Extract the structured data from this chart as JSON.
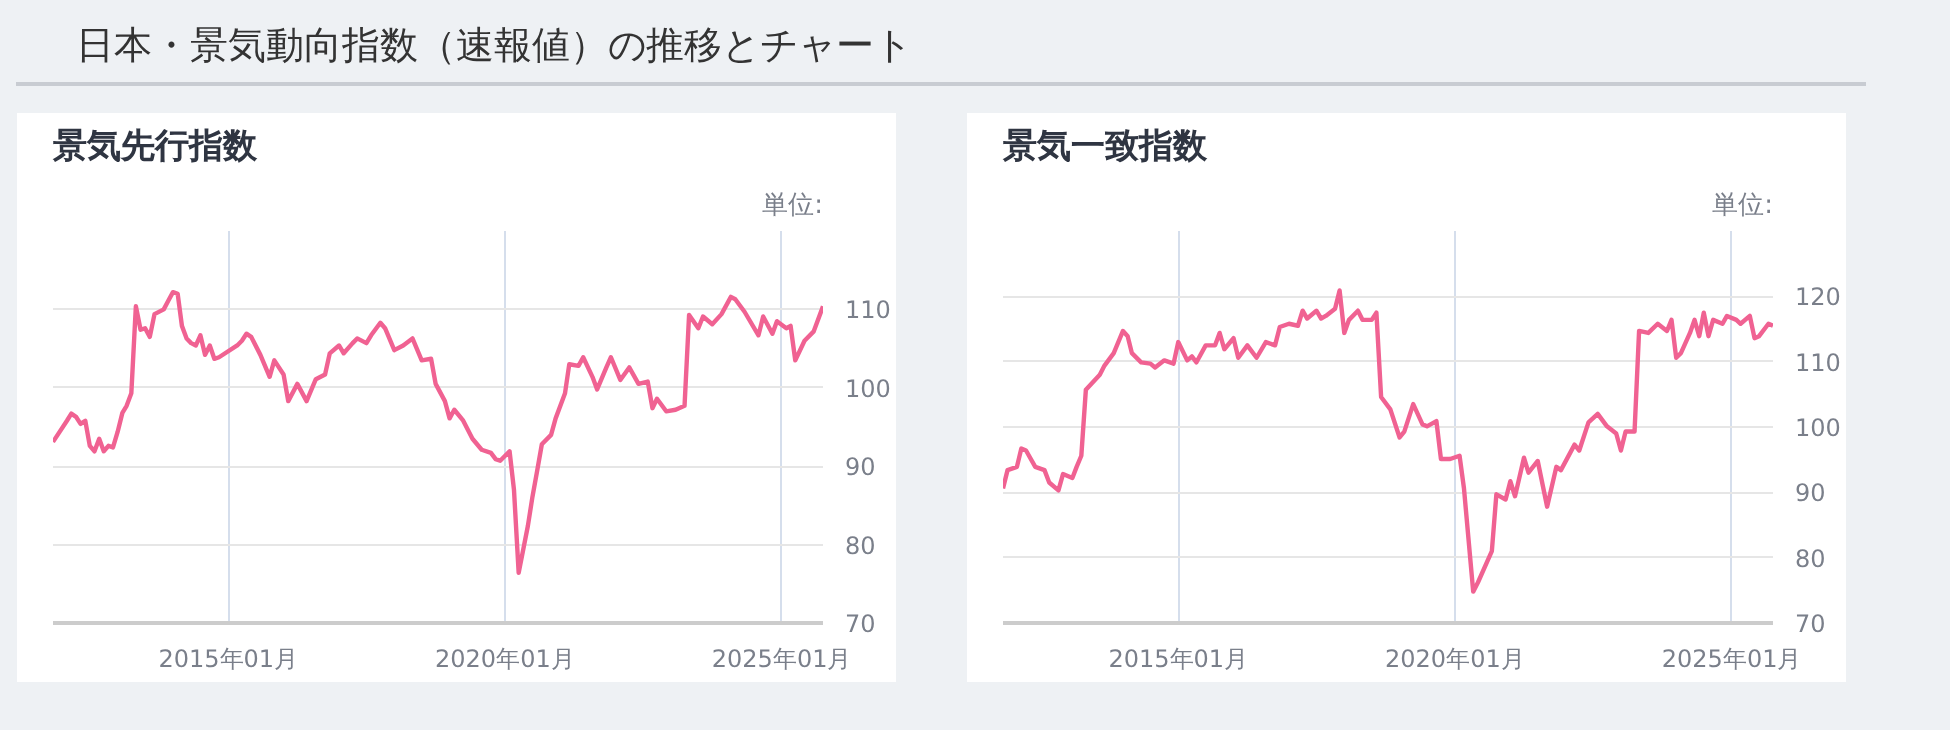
{
  "chart_data": [
    {
      "type": "line",
      "title": "景気先行指数",
      "annotations": [
        "日本・景気動向指数（速報値）の推移とチャート",
        "単位:"
      ],
      "grid": true,
      "marker": "none",
      "line_style": "solid",
      "xlim": [
        "2011-11",
        "2025-10"
      ],
      "xticks": [
        {
          "value": "2015-01",
          "label": "2015年01月"
        },
        {
          "value": "2020-01",
          "label": "2020年01月"
        },
        {
          "value": "2025-01",
          "label": "2025年01月"
        }
      ],
      "ylim": [
        70,
        120
      ],
      "yticks": [
        70,
        80,
        90,
        100,
        110
      ],
      "series": [
        {
          "color": "#f06292",
          "x": [
            "2011-11",
            "2012-02",
            "2012-03",
            "2012-04",
            "2012-05",
            "2012-06",
            "2012-07",
            "2012-08",
            "2012-09",
            "2012-10",
            "2012-11",
            "2012-12",
            "2013-01",
            "2013-02",
            "2013-03",
            "2013-04",
            "2013-05",
            "2013-06",
            "2013-07",
            "2013-08",
            "2013-09",
            "2013-11",
            "2013-12",
            "2014-01",
            "2014-02",
            "2014-03",
            "2014-04",
            "2014-05",
            "2014-06",
            "2014-07",
            "2014-08",
            "2014-09",
            "2014-10",
            "2014-11",
            "2015-03",
            "2015-04",
            "2015-05",
            "2015-06",
            "2015-08",
            "2015-10",
            "2015-11",
            "2016-01",
            "2016-02",
            "2016-04",
            "2016-06",
            "2016-08",
            "2016-10",
            "2016-11",
            "2017-01",
            "2017-02",
            "2017-04",
            "2017-05",
            "2017-07",
            "2017-08",
            "2017-10",
            "2017-11",
            "2018-01",
            "2018-03",
            "2018-05",
            "2018-07",
            "2018-09",
            "2018-10",
            "2018-12",
            "2019-01",
            "2019-02",
            "2019-04",
            "2019-06",
            "2019-08",
            "2019-10",
            "2019-11",
            "2019-12",
            "2020-02",
            "2020-03",
            "2020-04",
            "2020-06",
            "2020-07",
            "2020-08",
            "2020-09",
            "2020-11",
            "2020-12",
            "2021-02",
            "2021-03",
            "2021-05",
            "2021-06",
            "2021-08",
            "2021-09",
            "2021-11",
            "2021-12",
            "2022-02",
            "2022-04",
            "2022-06",
            "2022-08",
            "2022-09",
            "2022-10",
            "2022-12",
            "2023-02",
            "2023-04",
            "2023-05",
            "2023-07",
            "2023-08",
            "2023-10",
            "2023-12",
            "2024-02",
            "2024-03",
            "2024-05",
            "2024-08",
            "2024-09",
            "2024-11",
            "2024-12",
            "2025-02",
            "2025-03",
            "2025-04",
            "2025-06",
            "2025-08",
            "2025-10"
          ],
          "values": [
            93.1,
            95.8,
            96.7,
            96.3,
            95.4,
            95.8,
            92.6,
            91.9,
            93.5,
            91.9,
            92.6,
            92.4,
            94.4,
            96.8,
            97.7,
            99.3,
            110.4,
            107.4,
            107.6,
            106.5,
            109.4,
            110,
            111.1,
            112.2,
            112,
            107.9,
            106.3,
            105.7,
            105.4,
            106.7,
            104.2,
            105.4,
            103.7,
            103.9,
            105.4,
            106,
            106.9,
            106.5,
            104.2,
            101.4,
            103.5,
            101.7,
            98.3,
            100.5,
            98.3,
            101.1,
            101.7,
            104.4,
            105.4,
            104.4,
            105.7,
            106.3,
            105.7,
            106.7,
            108.3,
            107.6,
            104.8,
            105.4,
            106.3,
            103.5,
            103.7,
            100.5,
            98.3,
            96.1,
            97.2,
            95.8,
            93.5,
            92.1,
            91.7,
            90.9,
            90.7,
            91.9,
            87,
            76.4,
            82.4,
            86.1,
            89.4,
            92.8,
            94,
            96.1,
            99.3,
            103,
            102.8,
            103.9,
            101.4,
            99.8,
            102.6,
            103.9,
            101,
            102.6,
            100.5,
            100.8,
            97.4,
            98.6,
            97,
            97.2,
            97.7,
            109.3,
            107.6,
            109.1,
            108.1,
            109.4,
            111.6,
            111.3,
            109.7,
            106.7,
            109.1,
            106.9,
            108.5,
            107.6,
            107.9,
            103.5,
            106,
            107.2,
            110.4
          ]
        }
      ]
    },
    {
      "type": "line",
      "title": "景気一致指数",
      "annotations": [
        "単位:"
      ],
      "grid": true,
      "marker": "none",
      "line_style": "solid",
      "xlim": [
        "2011-11",
        "2025-10"
      ],
      "xticks": [
        {
          "value": "2015-01",
          "label": "2015年01月"
        },
        {
          "value": "2020-01",
          "label": "2020年01月"
        },
        {
          "value": "2025-01",
          "label": "2025年01月"
        }
      ],
      "ylim": [
        70,
        130
      ],
      "yticks": [
        70,
        80,
        90,
        100,
        110,
        120
      ],
      "series": [
        {
          "color": "#f06292",
          "x": [
            "2011-11",
            "2011-12",
            "2012-02",
            "2012-03",
            "2012-04",
            "2012-06",
            "2012-08",
            "2012-09",
            "2012-11",
            "2012-12",
            "2013-02",
            "2013-03",
            "2013-04",
            "2013-05",
            "2013-08",
            "2013-09",
            "2013-11",
            "2014-01",
            "2014-02",
            "2014-03",
            "2014-05",
            "2014-07",
            "2014-08",
            "2014-10",
            "2014-12",
            "2015-01",
            "2015-03",
            "2015-04",
            "2015-05",
            "2015-07",
            "2015-09",
            "2015-10",
            "2015-11",
            "2016-01",
            "2016-02",
            "2016-04",
            "2016-06",
            "2016-08",
            "2016-10",
            "2016-11",
            "2017-01",
            "2017-03",
            "2017-04",
            "2017-05",
            "2017-07",
            "2017-08",
            "2017-09",
            "2017-11",
            "2017-12",
            "2018-01",
            "2018-02",
            "2018-04",
            "2018-05",
            "2018-07",
            "2018-08",
            "2018-09",
            "2018-11",
            "2019-01",
            "2019-02",
            "2019-04",
            "2019-06",
            "2019-07",
            "2019-09",
            "2019-10",
            "2019-12",
            "2020-02",
            "2020-03",
            "2020-05",
            "2020-06",
            "2020-09",
            "2020-10",
            "2020-12",
            "2021-01",
            "2021-02",
            "2021-04",
            "2021-05",
            "2021-07",
            "2021-09",
            "2021-11",
            "2021-12",
            "2022-03",
            "2022-04",
            "2022-06",
            "2022-08",
            "2022-10",
            "2022-12",
            "2023-01",
            "2023-02",
            "2023-04",
            "2023-05",
            "2023-07",
            "2023-09",
            "2023-11",
            "2023-12",
            "2024-01",
            "2024-02",
            "2024-04",
            "2024-05",
            "2024-06",
            "2024-07",
            "2024-08",
            "2024-09",
            "2024-11",
            "2024-12",
            "2025-02",
            "2025-03",
            "2025-05",
            "2025-06",
            "2025-07",
            "2025-09",
            "2025-10"
          ],
          "values": [
            90.6,
            93.4,
            93.9,
            96.7,
            96.4,
            93.9,
            93.4,
            91.5,
            90.3,
            92.8,
            92.2,
            93.9,
            95.6,
            105.7,
            108,
            109.4,
            111.3,
            114.7,
            113.9,
            111.3,
            109.9,
            109.7,
            109.1,
            110.2,
            109.7,
            113,
            110.2,
            110.8,
            109.9,
            112.5,
            112.5,
            114.4,
            111.9,
            113.6,
            110.6,
            112.5,
            110.6,
            113,
            112.5,
            115.3,
            115.8,
            115.5,
            117.8,
            116.6,
            117.8,
            116.6,
            117,
            118.1,
            120.9,
            114.4,
            116.4,
            117.8,
            116.4,
            116.4,
            117.5,
            104.6,
            102.7,
            98.4,
            99.3,
            103.5,
            100.4,
            100.1,
            100.9,
            95.1,
            95.1,
            95.6,
            90.6,
            74.8,
            76.2,
            81,
            89.7,
            88.9,
            91.7,
            89.4,
            95.3,
            93,
            94.8,
            87.8,
            93.9,
            93.4,
            97.3,
            96.4,
            100.7,
            102,
            100.1,
            99,
            96.4,
            99.3,
            99.3,
            114.7,
            114.4,
            115.8,
            114.7,
            116.4,
            110.6,
            111.3,
            114.4,
            116.4,
            113.9,
            117.5,
            113.9,
            116.4,
            115.8,
            117,
            116.4,
            115.8,
            117,
            113.6,
            113.9,
            115.8,
            115.5
          ]
        }
      ]
    }
  ]
}
